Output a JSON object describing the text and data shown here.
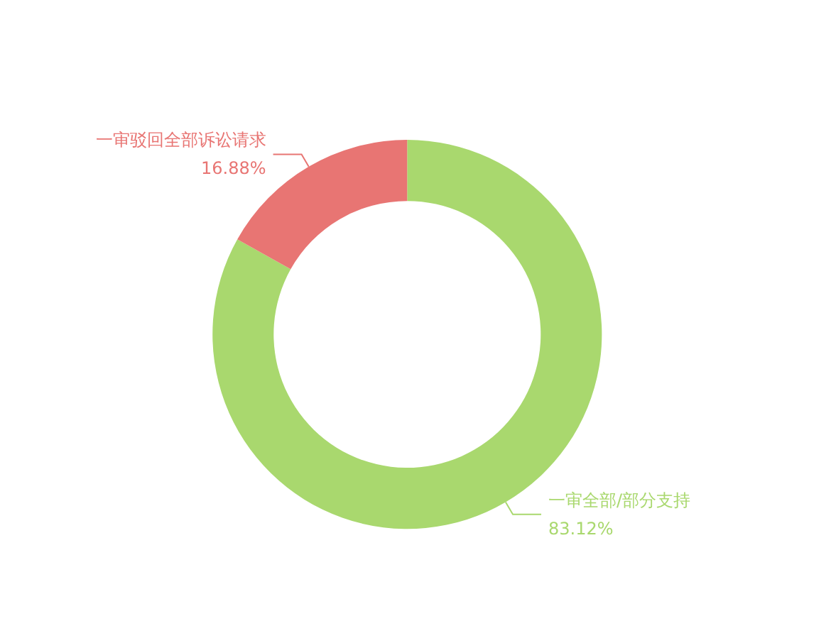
{
  "chart_data": {
    "type": "donut",
    "categories": [
      "一审全部/部分支持",
      "一审驳回全部诉讼请求"
    ],
    "values": [
      83.12,
      16.88
    ],
    "colors": [
      "#a9d86e",
      "#e87573"
    ],
    "value_labels": [
      "83.12%",
      "16.88%"
    ],
    "legend": false
  }
}
